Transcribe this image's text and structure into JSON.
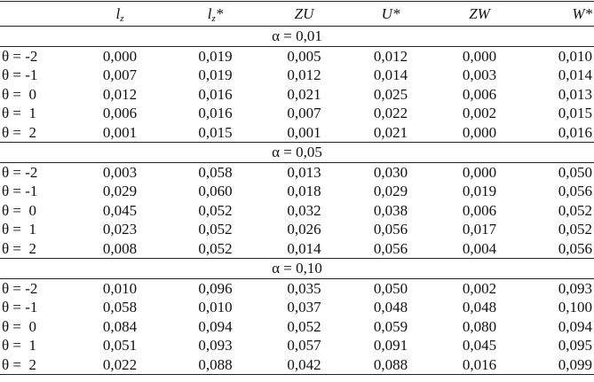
{
  "table": {
    "header": [
      {
        "main": "l",
        "sub": "z"
      },
      {
        "main": "l",
        "sub": "z",
        "suffix": "*"
      },
      {
        "main": "ZU"
      },
      {
        "main": "U*"
      },
      {
        "main": "ZW"
      },
      {
        "main": "W*"
      }
    ],
    "sections": [
      {
        "label": "α = 0,01",
        "rows": [
          {
            "label": "θ = -2",
            "values": [
              "0,000",
              "0,019",
              "0,005",
              "0,012",
              "0,000",
              "0,010"
            ]
          },
          {
            "label": "θ = -1",
            "values": [
              "0,007",
              "0,019",
              "0,012",
              "0,014",
              "0,003",
              "0,014"
            ]
          },
          {
            "label": "θ =  0",
            "values": [
              "0,012",
              "0,016",
              "0,021",
              "0,025",
              "0,006",
              "0,013"
            ]
          },
          {
            "label": "θ =  1",
            "values": [
              "0,006",
              "0,016",
              "0,007",
              "0,022",
              "0,002",
              "0,015"
            ]
          },
          {
            "label": "θ =  2",
            "values": [
              "0,001",
              "0,015",
              "0,001",
              "0,021",
              "0,000",
              "0,016"
            ]
          }
        ]
      },
      {
        "label": "α = 0,05",
        "rows": [
          {
            "label": "θ = -2",
            "values": [
              "0,003",
              "0,058",
              "0,013",
              "0,030",
              "0,000",
              "0,050"
            ]
          },
          {
            "label": "θ = -1",
            "values": [
              "0,029",
              "0,060",
              "0,018",
              "0,029",
              "0,019",
              "0,056"
            ]
          },
          {
            "label": "θ =  0",
            "values": [
              "0,045",
              "0,052",
              "0,032",
              "0,038",
              "0,006",
              "0,052"
            ]
          },
          {
            "label": "θ =  1",
            "values": [
              "0,023",
              "0,052",
              "0,026",
              "0,056",
              "0,017",
              "0,052"
            ]
          },
          {
            "label": "θ =  2",
            "values": [
              "0,008",
              "0,052",
              "0,014",
              "0,056",
              "0,004",
              "0,056"
            ]
          }
        ]
      },
      {
        "label": "α = 0,10",
        "rows": [
          {
            "label": "θ = -2",
            "values": [
              "0,010",
              "0,096",
              "0,035",
              "0,050",
              "0,002",
              "0,093"
            ]
          },
          {
            "label": "θ = -1",
            "values": [
              "0,058",
              "0,010",
              "0,037",
              "0,048",
              "0,048",
              "0,100"
            ]
          },
          {
            "label": "θ =  0",
            "values": [
              "0,084",
              "0,094",
              "0,052",
              "0,059",
              "0,080",
              "0,094"
            ]
          },
          {
            "label": "θ =  1",
            "values": [
              "0,051",
              "0,093",
              "0,057",
              "0,091",
              "0,045",
              "0,095"
            ]
          },
          {
            "label": "θ =  2",
            "values": [
              "0,022",
              "0,088",
              "0,042",
              "0,088",
              "0,016",
              "0,099"
            ]
          }
        ]
      }
    ]
  }
}
